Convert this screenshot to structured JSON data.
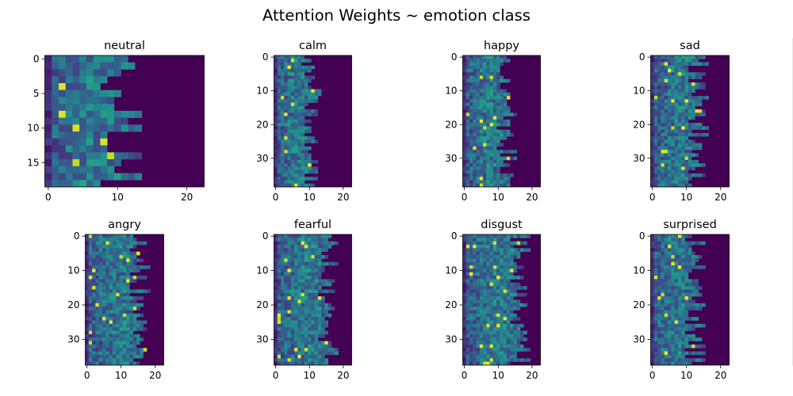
{
  "chart_data": {
    "type": "heatmap",
    "title": "Attention Weights ~ emotion class",
    "colormap": "viridis",
    "value_range": [
      0,
      1
    ],
    "panels": [
      {
        "title": "neutral",
        "rows": 19,
        "cols": 23,
        "active_cols": 11,
        "xticks": [
          0,
          10,
          20
        ],
        "yticks": [
          0,
          5,
          10,
          15
        ]
      },
      {
        "title": "calm",
        "rows": 39,
        "cols": 23,
        "active_cols": 11,
        "xticks": [
          0,
          10,
          20
        ],
        "yticks": [
          0,
          10,
          20,
          30
        ]
      },
      {
        "title": "happy",
        "rows": 39,
        "cols": 23,
        "active_cols": 13,
        "xticks": [
          0,
          10,
          20
        ],
        "yticks": [
          0,
          10,
          20,
          30
        ]
      },
      {
        "title": "sad",
        "rows": 39,
        "cols": 23,
        "active_cols": 14,
        "xticks": [
          0,
          10,
          20
        ],
        "yticks": [
          0,
          10,
          20,
          30
        ]
      },
      {
        "title": "angry",
        "rows": 38,
        "cols": 23,
        "active_cols": 16,
        "xticks": [
          0,
          10,
          20
        ],
        "yticks": [
          0,
          10,
          20,
          30
        ]
      },
      {
        "title": "fearful",
        "rows": 38,
        "cols": 23,
        "active_cols": 16,
        "xticks": [
          0,
          10,
          20
        ],
        "yticks": [
          0,
          10,
          20,
          30
        ]
      },
      {
        "title": "disgust",
        "rows": 38,
        "cols": 23,
        "active_cols": 17,
        "xticks": [
          0,
          10,
          20
        ],
        "yticks": [
          0,
          10,
          20,
          30
        ]
      },
      {
        "title": "surprised",
        "rows": 38,
        "cols": 23,
        "active_cols": 13,
        "xticks": [
          0,
          10,
          20
        ],
        "yticks": [
          0,
          10,
          20,
          30
        ]
      }
    ]
  }
}
